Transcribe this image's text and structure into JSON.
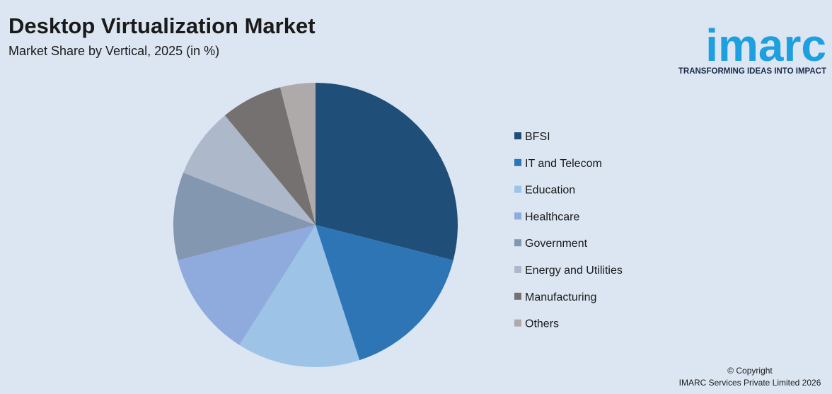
{
  "chart_data": {
    "type": "pie",
    "title": "Desktop Virtualization Market",
    "subtitle": "Market Share by Vertical, 2025 (in %)",
    "categories": [
      "BFSI",
      "IT and Telecom",
      "Education",
      "Healthcare",
      "Government",
      "Energy and Utilities",
      "Manufacturing",
      "Others"
    ],
    "values": [
      29,
      16,
      14,
      12,
      10,
      8,
      7,
      4
    ],
    "colors": [
      "#1f4e79",
      "#2e75b6",
      "#9dc3e6",
      "#8faadc",
      "#8497b0",
      "#adb9ca",
      "#767171",
      "#aeaaaa"
    ],
    "legend": "right"
  },
  "logo": {
    "name": "imarc",
    "tagline": "TRANSFORMING IDEAS INTO IMPACT"
  },
  "footer": {
    "copyright": "© Copyright",
    "company": "IMARC Services Private Limited 2026"
  }
}
